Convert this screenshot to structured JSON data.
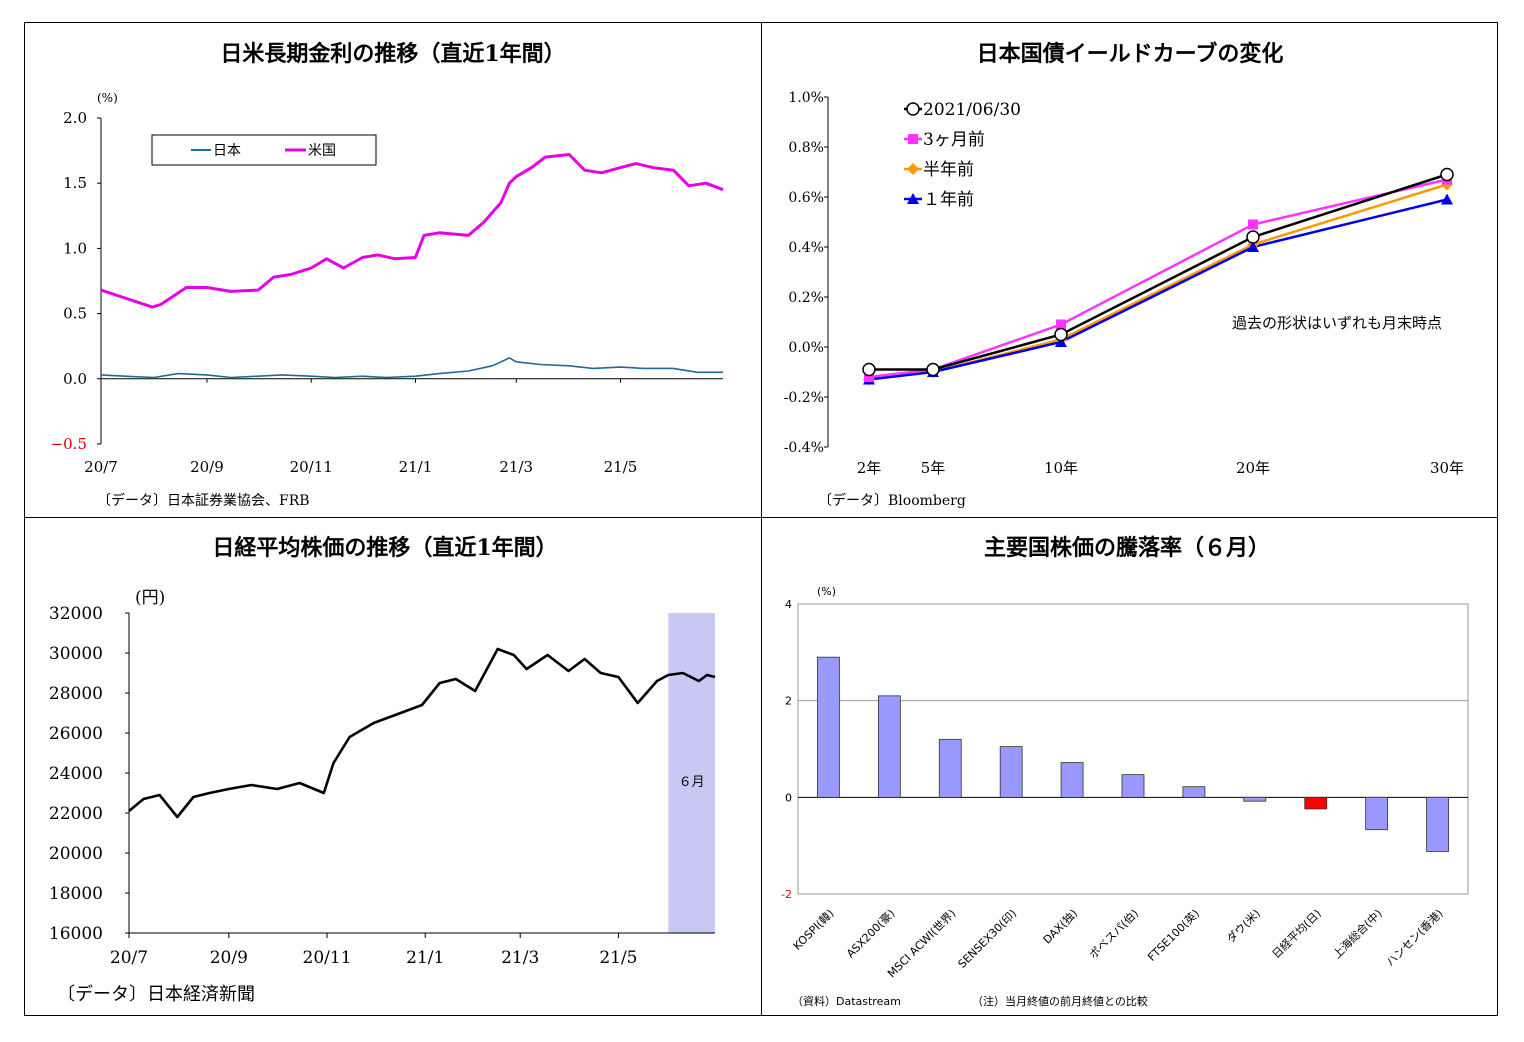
{
  "panels": {
    "jgb_ust": {
      "title": "日米長期金利の推移（直近1年間）",
      "unit": "(%)",
      "source": "〔データ〕日本証券業協会、FRB",
      "chart_data": {
        "type": "line",
        "title": "日米長期金利の推移（直近1年間）",
        "ylabel": "(%)",
        "ylim": [
          -0.5,
          2.0
        ],
        "yticks": [
          "2.0",
          "1.5",
          "1.0",
          "0.5",
          "0.0",
          "−0.5"
        ],
        "x_ticks": [
          "20/7",
          "20/9",
          "20/11",
          "21/1",
          "21/3",
          "21/5"
        ],
        "x_start": "2020-07-01",
        "x_end": "2021-06-30",
        "legend_position": "top-left",
        "series": [
          {
            "name": "日本",
            "color": "#1f6b94",
            "x": [
              "2020-07-01",
              "2020-07-15",
              "2020-08-01",
              "2020-08-15",
              "2020-09-01",
              "2020-09-15",
              "2020-10-01",
              "2020-10-15",
              "2020-11-01",
              "2020-11-15",
              "2020-12-01",
              "2020-12-15",
              "2021-01-01",
              "2021-01-15",
              "2021-02-01",
              "2021-02-15",
              "2021-02-25",
              "2021-03-01",
              "2021-03-15",
              "2021-04-01",
              "2021-04-15",
              "2021-05-01",
              "2021-05-15",
              "2021-06-01",
              "2021-06-15",
              "2021-06-30"
            ],
            "values": [
              0.03,
              0.02,
              0.01,
              0.04,
              0.03,
              0.01,
              0.02,
              0.03,
              0.02,
              0.01,
              0.02,
              0.01,
              0.02,
              0.04,
              0.06,
              0.1,
              0.16,
              0.13,
              0.11,
              0.1,
              0.08,
              0.09,
              0.08,
              0.08,
              0.05,
              0.05
            ]
          },
          {
            "name": "米国",
            "color": "#e600e6",
            "x": [
              "2020-07-01",
              "2020-07-15",
              "2020-07-31",
              "2020-08-05",
              "2020-08-20",
              "2020-09-01",
              "2020-09-15",
              "2020-10-01",
              "2020-10-10",
              "2020-10-20",
              "2020-11-01",
              "2020-11-10",
              "2020-11-20",
              "2020-12-01",
              "2020-12-10",
              "2020-12-20",
              "2021-01-01",
              "2021-01-06",
              "2021-01-15",
              "2021-02-01",
              "2021-02-10",
              "2021-02-20",
              "2021-02-25",
              "2021-03-01",
              "2021-03-10",
              "2021-03-18",
              "2021-04-01",
              "2021-04-10",
              "2021-04-20",
              "2021-05-01",
              "2021-05-10",
              "2021-05-20",
              "2021-06-01",
              "2021-06-10",
              "2021-06-20",
              "2021-06-30"
            ],
            "values": [
              0.68,
              0.62,
              0.55,
              0.57,
              0.7,
              0.7,
              0.67,
              0.68,
              0.78,
              0.8,
              0.85,
              0.92,
              0.85,
              0.93,
              0.95,
              0.92,
              0.93,
              1.1,
              1.12,
              1.1,
              1.2,
              1.35,
              1.5,
              1.55,
              1.62,
              1.7,
              1.72,
              1.6,
              1.58,
              1.62,
              1.65,
              1.62,
              1.6,
              1.48,
              1.5,
              1.45
            ]
          }
        ]
      }
    },
    "yield_curve": {
      "title": "日本国債イールドカーブの変化",
      "source": "〔データ〕Bloomberg",
      "note": "過去の形状はいずれも月末時点",
      "chart_data": {
        "type": "line",
        "title": "日本国債イールドカーブの変化",
        "categories": [
          "2年",
          "5年",
          "10年",
          "20年",
          "30年"
        ],
        "x": [
          2,
          5,
          10,
          20,
          30
        ],
        "ylim": [
          -0.4,
          1.0
        ],
        "yticks": [
          "1.0%",
          "0.8%",
          "0.6%",
          "0.4%",
          "0.2%",
          "0.0%",
          "-0.2%",
          "-0.4%"
        ],
        "legend_position": "top-left",
        "series": [
          {
            "name": "2021/06/30",
            "color": "#000000",
            "marker": "circle",
            "values": [
              -0.09,
              -0.09,
              0.05,
              0.44,
              0.69
            ]
          },
          {
            "name": "3ヶ月前",
            "color": "#ff33ff",
            "marker": "square",
            "values": [
              -0.12,
              -0.09,
              0.09,
              0.49,
              0.67
            ]
          },
          {
            "name": "半年前",
            "color": "#ff9900",
            "marker": "diamond",
            "values": [
              -0.13,
              -0.1,
              0.03,
              0.41,
              0.65
            ]
          },
          {
            "name": "１年前",
            "color": "#0000ee",
            "marker": "triangle",
            "values": [
              -0.13,
              -0.1,
              0.02,
              0.4,
              0.59
            ]
          }
        ]
      }
    },
    "nikkei": {
      "title": "日経平均株価の推移（直近1年間）",
      "unit": "(円)",
      "source": "〔データ〕日本経済新聞",
      "band_label": "６月",
      "chart_data": {
        "type": "line",
        "title": "日経平均株価の推移（直近1年間）",
        "ylabel": "(円)",
        "ylim": [
          16000,
          32000
        ],
        "yticks": [
          "32000",
          "30000",
          "28000",
          "26000",
          "24000",
          "22000",
          "20000",
          "18000",
          "16000"
        ],
        "x_ticks": [
          "20/7",
          "20/9",
          "20/11",
          "21/1",
          "21/3",
          "21/5"
        ],
        "x_start": "2020-07-01",
        "x_end": "2021-06-30",
        "highlight": {
          "from": "2021-06-01",
          "to": "2021-06-30",
          "label": "６月",
          "color": "#c8c8f5"
        },
        "series": [
          {
            "name": "日経平均",
            "color": "#000000",
            "x": [
              "2020-07-01",
              "2020-07-10",
              "2020-07-20",
              "2020-07-31",
              "2020-08-10",
              "2020-08-20",
              "2020-09-01",
              "2020-09-15",
              "2020-10-01",
              "2020-10-15",
              "2020-10-30",
              "2020-11-05",
              "2020-11-15",
              "2020-11-30",
              "2020-12-10",
              "2020-12-30",
              "2021-01-10",
              "2021-01-20",
              "2021-02-01",
              "2021-02-15",
              "2021-02-25",
              "2021-03-05",
              "2021-03-18",
              "2021-03-31",
              "2021-04-10",
              "2021-04-20",
              "2021-05-01",
              "2021-05-13",
              "2021-05-25",
              "2021-06-01",
              "2021-06-10",
              "2021-06-20",
              "2021-06-25",
              "2021-06-30"
            ],
            "values": [
              22100,
              22700,
              22900,
              21800,
              22800,
              23000,
              23200,
              23400,
              23200,
              23500,
              23000,
              24500,
              25800,
              26500,
              26800,
              27400,
              28500,
              28700,
              28100,
              30200,
              29900,
              29200,
              29900,
              29100,
              29700,
              29000,
              28800,
              27500,
              28600,
              28900,
              29000,
              28600,
              28900,
              28800
            ]
          }
        ]
      }
    },
    "world_stocks": {
      "title": "主要国株価の騰落率（６月）",
      "unit": "(%)",
      "source": "（資料）Datastream",
      "note": "（注）当月終値の前月終値との比較",
      "chart_data": {
        "type": "bar",
        "title": "主要国株価の騰落率（６月）",
        "ylabel": "(%)",
        "ylim": [
          -2,
          4
        ],
        "yticks": [
          "4",
          "2",
          "0",
          "-2"
        ],
        "categories": [
          "KOSPI(韓)",
          "ASX200(豪)",
          "MSCI ACWI(世界)",
          "SENSEX30(印)",
          "DAX(独)",
          "ボベスパ(伯)",
          "FTSE100(英)",
          "ダウ(米)",
          "日経平均(日)",
          "上海総合(中)",
          "ハンセン(香港)"
        ],
        "values": [
          2.9,
          2.1,
          1.2,
          1.05,
          0.72,
          0.47,
          0.22,
          -0.08,
          -0.24,
          -0.67,
          -1.12
        ],
        "colors": {
          "default": "#9999ff",
          "highlight": "#ff0000"
        },
        "highlight_index": 8
      }
    }
  }
}
